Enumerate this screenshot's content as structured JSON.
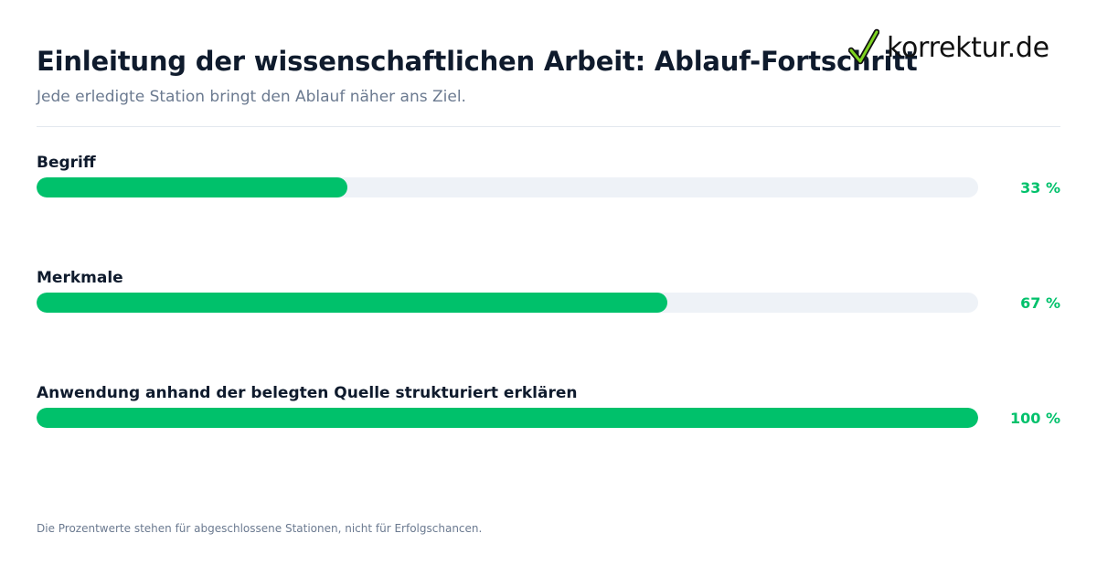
{
  "header": {
    "title": "Einleitung der wissenschaftlichen Arbeit: Ablauf-Fortschritt",
    "subtitle": "Jede erledigte Station bringt den Ablauf näher ans Ziel."
  },
  "logo": {
    "text": "korrektur.de",
    "icon": "checkmark-icon",
    "check_color": "#7ed321"
  },
  "colors": {
    "accent": "#00c16b",
    "track": "#eef2f7",
    "text": "#0f1b2d",
    "muted": "#6b7a90"
  },
  "chart_data": {
    "type": "bar",
    "orientation": "horizontal",
    "categories": [
      "Begriff",
      "Merkmale",
      "Anwendung anhand der belegten Quelle strukturiert erklären"
    ],
    "values": [
      33,
      67,
      100
    ],
    "value_labels": [
      "33 %",
      "67 %",
      "100 %"
    ],
    "xlim": [
      0,
      100
    ],
    "grid": false
  },
  "footer": {
    "note": "Die Prozentwerte stehen für abgeschlossene Stationen, nicht für Erfolgschancen."
  }
}
